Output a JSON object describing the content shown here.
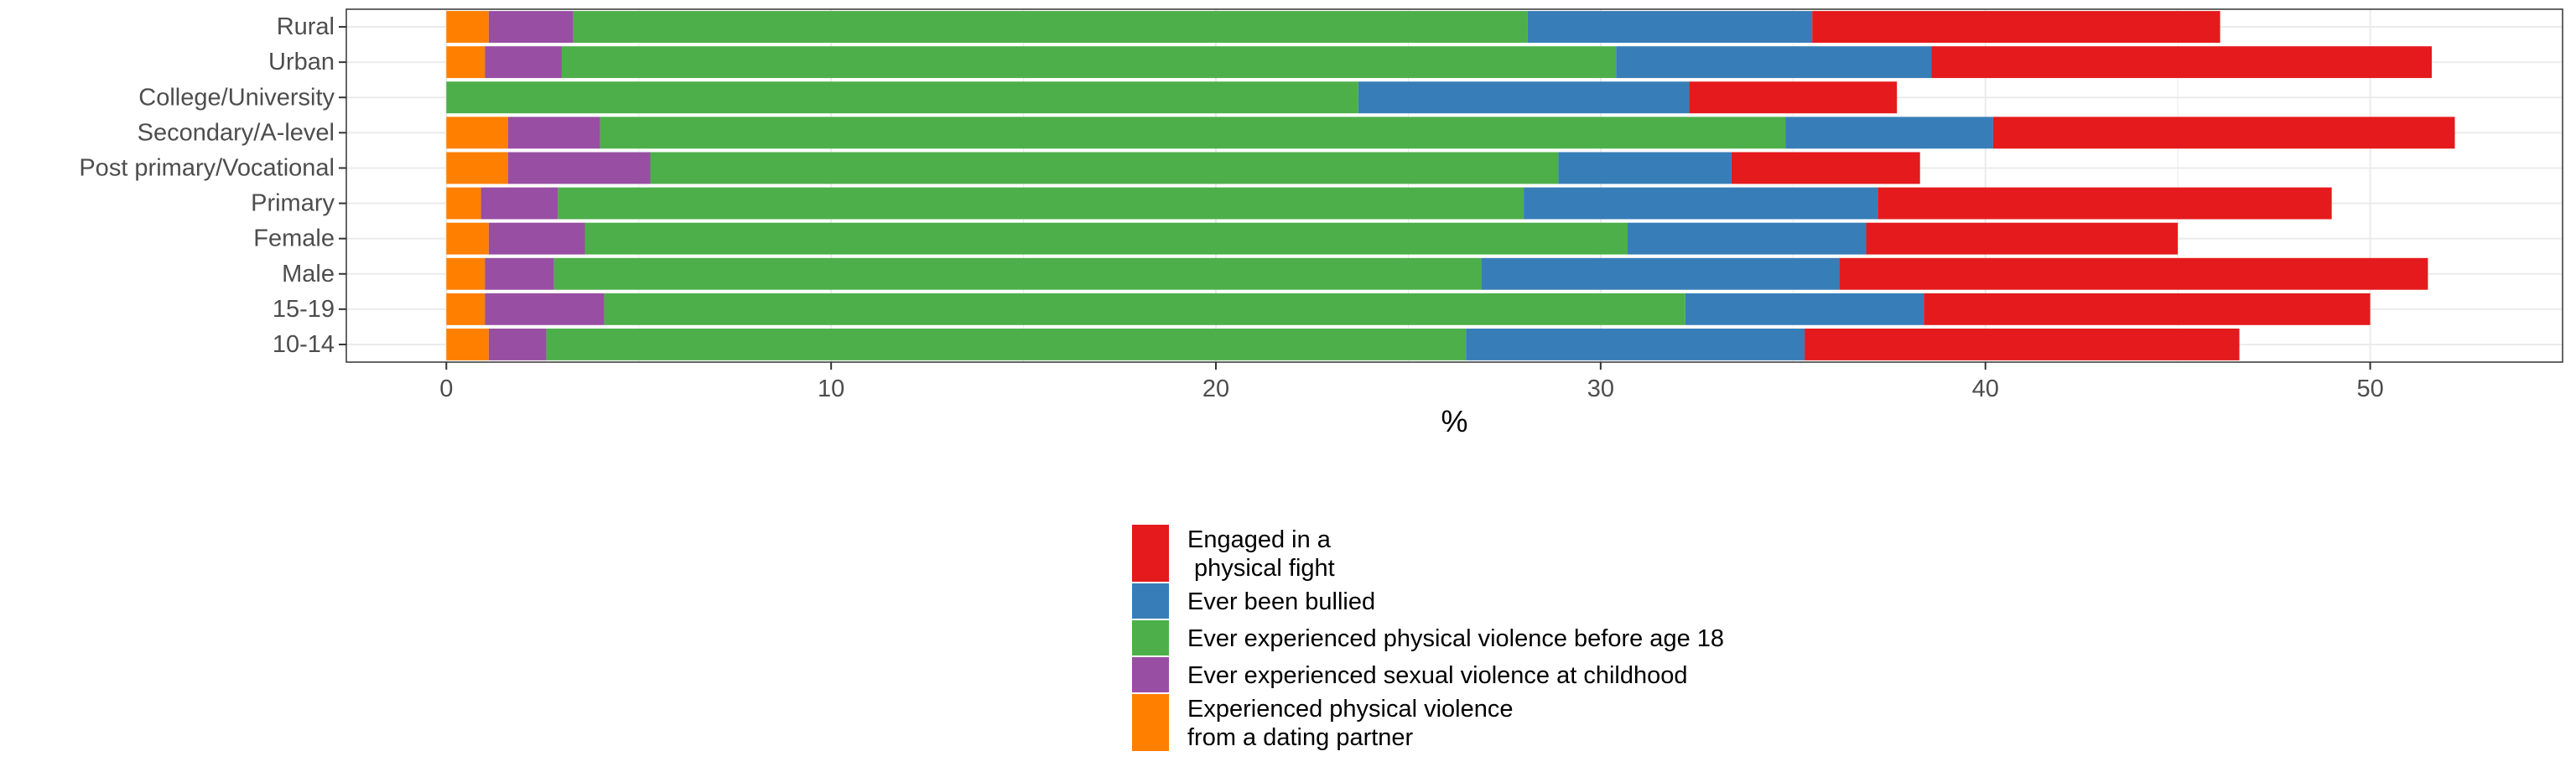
{
  "chart_data": {
    "type": "bar",
    "orientation": "horizontal",
    "stacked": true,
    "categories": [
      "Rural",
      "Urban",
      "College/University",
      "Secondary/A-level",
      "Post primary/Vocational",
      "Primary",
      "Female",
      "Male",
      "15-19",
      "10-14"
    ],
    "series": [
      {
        "name": "Experienced physical violence\nfrom a dating partner",
        "color": "#FF7F00",
        "values": [
          1.1,
          1.0,
          0.0,
          1.6,
          1.6,
          0.9,
          1.1,
          1.0,
          1.0,
          1.1
        ]
      },
      {
        "name": "Ever experienced sexual violence at childhood",
        "color": "#984EA3",
        "values": [
          2.2,
          2.0,
          0.0,
          2.4,
          3.7,
          2.0,
          2.5,
          1.8,
          3.1,
          1.5
        ]
      },
      {
        "name": "Ever experienced physical violence before age 18",
        "color": "#4DAF4A",
        "values": [
          24.8,
          27.4,
          23.7,
          30.8,
          23.6,
          25.1,
          27.1,
          24.1,
          28.1,
          23.9
        ]
      },
      {
        "name": "Ever been bullied",
        "color": "#377EB8",
        "values": [
          7.4,
          8.2,
          8.6,
          5.4,
          4.5,
          9.2,
          6.2,
          9.3,
          6.2,
          8.8
        ]
      },
      {
        "name": "Engaged in a\n physical fight",
        "color": "#E41A1C",
        "values": [
          10.6,
          13.0,
          5.4,
          12.0,
          4.9,
          11.8,
          8.1,
          15.3,
          11.6,
          11.3
        ]
      }
    ],
    "xlabel": "%",
    "ylabel": "",
    "xlim": [
      -2.6,
      55.0
    ],
    "xticks": [
      0,
      10,
      20,
      30,
      40,
      50
    ],
    "legend_position": "bottom",
    "legend_order": [
      4,
      3,
      2,
      1,
      0
    ],
    "grid": true
  }
}
